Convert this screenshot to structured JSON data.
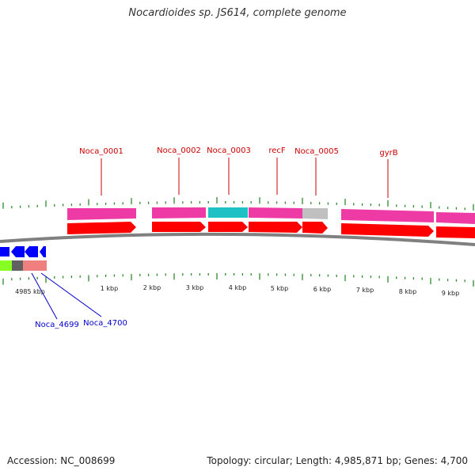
{
  "title": "Nocardioides sp. JS614, complete genome",
  "accession": "Accession: NC_008699",
  "topology_info": "Topology: circular; Length: 4,985,871 bp; Genes: 4,700",
  "colors": {
    "backbone": "#808080",
    "gene_pink": "#ee3aa4",
    "gene_cyan": "#1ec1c4",
    "gene_grey": "#c0c0c0",
    "cds_red": "#ff0000",
    "reverse_blue": "#0000ff",
    "reverse_green": "#88ff22",
    "reverse_darkgrey": "#606060",
    "reverse_salmon": "#f08080",
    "tick_green": "#2d8a2d",
    "label_red": "#cc0000",
    "label_blue": "#0000cc"
  },
  "scale_ticks": [
    "4985 kbp",
    "1 kbp",
    "2 kbp",
    "3 kbp",
    "4 kbp",
    "5 kbp",
    "6 kbp",
    "7 kbp",
    "8 kbp",
    "9 kbp"
  ],
  "forward_genes": [
    {
      "label": "Noca_0001",
      "type": "gene",
      "color": "gene_pink"
    },
    {
      "label": "Noca_0002",
      "type": "gene",
      "color": "gene_pink"
    },
    {
      "label": "Noca_0003",
      "type": "gene",
      "color": "gene_cyan"
    },
    {
      "label": "recF",
      "type": "gene",
      "color": "gene_pink"
    },
    {
      "label": "Noca_0005",
      "type": "gene",
      "color": "gene_grey"
    },
    {
      "label": "gyrB",
      "type": "gene",
      "color": "gene_pink"
    },
    {
      "label": "",
      "type": "gene",
      "color": "gene_pink"
    }
  ],
  "reverse_genes": [
    {
      "label": "Noca_4699"
    },
    {
      "label": "Noca_4700"
    }
  ]
}
